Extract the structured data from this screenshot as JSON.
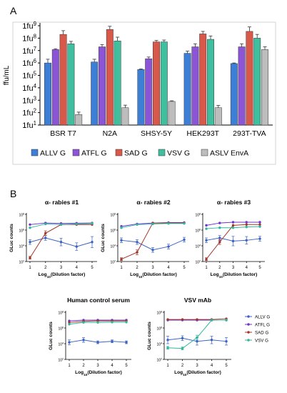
{
  "panels": {
    "a": "A",
    "b": "B"
  },
  "colors": {
    "allv": "#3d7fd6",
    "atfl": "#8b55d6",
    "sad": "#d8594a",
    "vsv": "#3fbf9e",
    "aslv": "#bdbdbd",
    "line_allv": "#3b63c4",
    "line_atfl": "#6f33d0",
    "line_sad": "#a1352a",
    "line_vsv": "#2fb79a"
  },
  "chart_data": [
    {
      "type": "bar",
      "panel": "A",
      "ylabel": "ffu/mL",
      "yscale": "log",
      "ylim_exp": [
        1,
        9
      ],
      "y_ticks": [
        {
          "base": "1fu",
          "exp": "1"
        },
        {
          "base": "1fu",
          "exp": "2"
        },
        {
          "base": "1fu",
          "exp": "3"
        },
        {
          "base": "1fu",
          "exp": "4"
        },
        {
          "base": "1fu",
          "exp": "5"
        },
        {
          "base": "1fu",
          "exp": "6"
        },
        {
          "base": "1fu",
          "exp": "7"
        },
        {
          "base": "1fu",
          "exp": "8"
        },
        {
          "base": "1fu",
          "exp": "9"
        }
      ],
      "categories": [
        "BSR T7",
        "N2A",
        "SHSY-5Y",
        "HEK293T",
        "293T-TVA"
      ],
      "legend_position": "bottom",
      "series": [
        {
          "name": "ALLV G",
          "color": "allv",
          "values": [
            1000000.0,
            1200000.0,
            300000.0,
            6000000.0,
            900000.0
          ],
          "err_hi": [
            2000000.0,
            2000000.0,
            330000.0,
            9000000.0,
            1000000.0
          ]
        },
        {
          "name": "ATFL G",
          "color": "atfl",
          "values": [
            12000000.0,
            20000000.0,
            2200000.0,
            20000000.0,
            20000000.0
          ],
          "err_hi": [
            14000000.0,
            30000000.0,
            3000000.0,
            35000000.0,
            35000000.0
          ]
        },
        {
          "name": "SAD G",
          "color": "sad",
          "values": [
            200000000.0,
            500000000.0,
            50000000.0,
            220000000.0,
            350000000.0
          ],
          "err_hi": [
            400000000.0,
            900000000.0,
            65000000.0,
            350000000.0,
            800000000.0
          ]
        },
        {
          "name": "VSV G",
          "color": "vsv",
          "values": [
            35000000.0,
            60000000.0,
            50000000.0,
            80000000.0,
            100000000.0
          ],
          "err_hi": [
            55000000.0,
            120000000.0,
            70000000.0,
            150000000.0,
            200000000.0
          ]
        },
        {
          "name": "ASLV EnvA",
          "color": "aslv",
          "values": [
            70,
            250,
            800,
            250,
            12000000.0
          ],
          "err_hi": [
            110,
            400,
            900,
            380,
            20000000.0
          ]
        }
      ]
    },
    {
      "type": "line",
      "panel": "B",
      "title": "α- rabies #1",
      "ylabel": "GLuc counts",
      "xlabel": "Log10(Dilution factor)",
      "x": [
        1,
        2,
        3,
        4,
        5
      ],
      "yscale": "log",
      "ylim_exp": [
        2,
        8
      ],
      "series": [
        {
          "name": "ALLV G",
          "color": "line_allv",
          "values": [
            30000.0,
            100000.0,
            30000.0,
            8000.0,
            30000.0
          ],
          "err": [
            2.0,
            2.0,
            3.0,
            3.0,
            5.0
          ]
        },
        {
          "name": "ATFL G",
          "color": "line_atfl",
          "values": [
            5000000.0,
            8000000.0,
            7000000.0,
            7500000.0,
            8000000.0
          ],
          "err": [
            1.3,
            1.3,
            1.3,
            1.3,
            1.3
          ]
        },
        {
          "name": "SAD G",
          "color": "line_sad",
          "values": [
            300,
            400000.0,
            5000000.0,
            5000000.0,
            5000000.0
          ],
          "err": [
            1.5,
            2.0,
            1.3,
            1.3,
            1.3
          ]
        },
        {
          "name": "VSV G",
          "color": "line_vsv",
          "values": [
            2000000.0,
            6000000.0,
            5000000.0,
            6000000.0,
            7000000.0
          ],
          "err": [
            1.3,
            1.3,
            1.3,
            1.3,
            1.3
          ]
        }
      ]
    },
    {
      "type": "line",
      "panel": "B",
      "title": "α- rabies #2",
      "ylabel": "GLuc counts",
      "xlabel": "Log10(Dilution factor)",
      "x": [
        1,
        2,
        3,
        4,
        5
      ],
      "yscale": "log",
      "ylim_exp": [
        2,
        8
      ],
      "series": [
        {
          "name": "ALLV G",
          "color": "line_allv",
          "values": [
            50000.0,
            30000.0,
            3000.0,
            8000.0,
            60000.0
          ],
          "err": [
            2.0,
            2.0,
            2.0,
            2.0,
            2.0
          ]
        },
        {
          "name": "ATFL G",
          "color": "line_atfl",
          "values": [
            3000000.0,
            6000000.0,
            8000000.0,
            9000000.0,
            9000000.0
          ],
          "err": [
            1.3,
            1.3,
            1.3,
            1.3,
            1.3
          ]
        },
        {
          "name": "SAD G",
          "color": "line_sad",
          "values": [
            200,
            1500.0,
            8000000.0,
            8000000.0,
            8000000.0
          ],
          "err": [
            1.5,
            2.0,
            1.3,
            1.3,
            1.3
          ]
        },
        {
          "name": "VSV G",
          "color": "line_vsv",
          "values": [
            2000000.0,
            5000000.0,
            6000000.0,
            7000000.0,
            7000000.0
          ],
          "err": [
            1.3,
            1.3,
            1.3,
            1.3,
            1.3
          ]
        }
      ]
    },
    {
      "type": "line",
      "panel": "B",
      "title": "α- rabies #3",
      "ylabel": "",
      "xlabel": "Log10(Dilution factor)",
      "x": [
        1,
        2,
        3,
        4,
        5
      ],
      "yscale": "log",
      "ylim_exp": [
        2,
        8
      ],
      "series": [
        {
          "name": "ALLV G",
          "color": "line_allv",
          "values": [
            50000.0,
            100000.0,
            40000.0,
            50000.0,
            80000.0
          ],
          "err": [
            2.0,
            2.0,
            4.0,
            3.0,
            2.0
          ]
        },
        {
          "name": "ATFL G",
          "color": "line_atfl",
          "values": [
            4000000.0,
            8000000.0,
            10000000.0,
            10000000.0,
            10000000.0
          ],
          "err": [
            1.3,
            1.3,
            1.3,
            1.3,
            1.3
          ]
        },
        {
          "name": "SAD G",
          "color": "line_sad",
          "values": [
            200,
            30000.0,
            4000000.0,
            5000000.0,
            5000000.0
          ],
          "err": [
            1.5,
            2.0,
            1.3,
            1.3,
            1.3
          ]
        },
        {
          "name": "VSV G",
          "color": "line_vsv",
          "values": [
            1500000.0,
            2000000.0,
            2000000.0,
            2500000.0,
            2800000.0
          ],
          "err": [
            1.3,
            1.3,
            1.3,
            1.3,
            1.3
          ]
        }
      ]
    },
    {
      "type": "line",
      "panel": "B",
      "title": "Human control serum",
      "ylabel": "GLuc counts",
      "xlabel": "Log10(Dilution factor)",
      "x": [
        1,
        2,
        3,
        4,
        5
      ],
      "yscale": "log",
      "ylim_exp": [
        2,
        8
      ],
      "series": [
        {
          "name": "ALLV G",
          "color": "line_allv",
          "values": [
            15000.0,
            30000.0,
            15000.0,
            20000.0,
            15000.0
          ],
          "err": [
            2.0,
            2.0,
            1.5,
            1.5,
            1.5
          ]
        },
        {
          "name": "ATFL G",
          "color": "line_atfl",
          "values": [
            8000000.0,
            10000000.0,
            10000000.0,
            10000000.0,
            10000000.0
          ],
          "err": [
            1.3,
            1.3,
            1.3,
            1.3,
            1.3
          ]
        },
        {
          "name": "SAD G",
          "color": "line_sad",
          "values": [
            5000000.0,
            7000000.0,
            8000000.0,
            8000000.0,
            8000000.0
          ],
          "err": [
            1.3,
            1.3,
            1.3,
            1.3,
            1.3
          ]
        },
        {
          "name": "VSV G",
          "color": "line_vsv",
          "values": [
            3000000.0,
            5000000.0,
            5000000.0,
            5500000.0,
            5500000.0
          ],
          "err": [
            1.3,
            1.3,
            1.3,
            1.3,
            1.3
          ]
        }
      ]
    },
    {
      "type": "line",
      "panel": "B",
      "title": "VSV mAb",
      "ylabel": "GLuc counts",
      "xlabel": "Log10(Dilution factor)",
      "x": [
        1,
        2,
        3,
        4,
        5
      ],
      "yscale": "log",
      "ylim_exp": [
        2,
        8
      ],
      "series": [
        {
          "name": "ALLV G",
          "color": "line_allv",
          "values": [
            30000.0,
            50000.0,
            20000.0,
            30000.0,
            20000.0
          ],
          "err": [
            3.0,
            2.0,
            3.0,
            3.0,
            3.0
          ]
        },
        {
          "name": "ATFL G",
          "color": "line_atfl",
          "values": [
            10000000.0,
            10000000.0,
            10000000.0,
            10000000.0,
            10000000.0
          ],
          "err": [
            1.3,
            1.3,
            1.3,
            1.3,
            1.3
          ]
        },
        {
          "name": "SAD G",
          "color": "line_sad",
          "values": [
            12000000.0,
            12000000.0,
            12000000.0,
            12000000.0,
            15000000.0
          ],
          "err": [
            1.3,
            1.3,
            1.3,
            1.3,
            1.3
          ]
        },
        {
          "name": "VSV G",
          "color": "line_vsv",
          "values": [
            3000.0,
            2500.0,
            60000.0,
            10000000.0,
            10000000.0
          ],
          "err": [
            1.5,
            1.5,
            2.0,
            1.3,
            1.3
          ]
        }
      ],
      "legend_position": "right"
    }
  ]
}
